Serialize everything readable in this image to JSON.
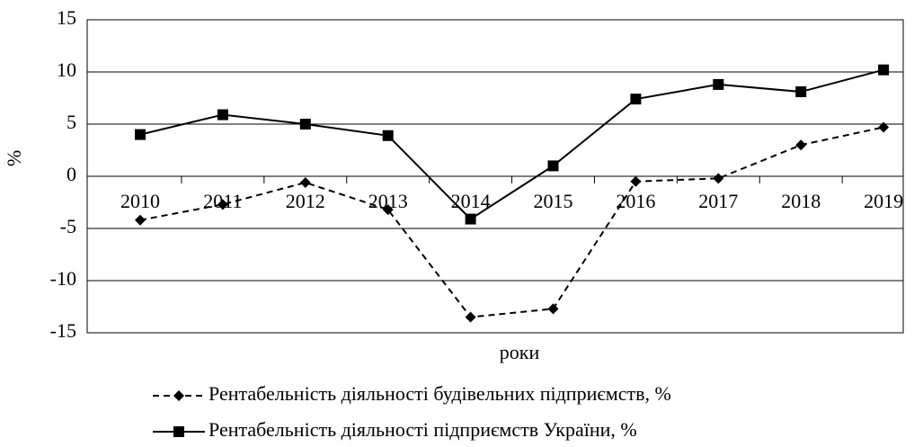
{
  "chart_data": {
    "type": "line",
    "categories": [
      "2010",
      "2011",
      "2012",
      "2013",
      "2014",
      "2015",
      "2016",
      "2017",
      "2018",
      "2019"
    ],
    "series": [
      {
        "name": "Рентабельність діяльності будівельних підприємств, %",
        "color": "#000000",
        "dash": true,
        "marker": "diamond",
        "values": [
          -4.2,
          -2.7,
          -0.6,
          -3.2,
          -13.5,
          -12.7,
          -0.5,
          -0.2,
          3.0,
          4.7
        ]
      },
      {
        "name": "Рентабельність діяльності підприємств України, %",
        "color": "#000000",
        "dash": false,
        "marker": "square",
        "values": [
          4.0,
          5.9,
          5.0,
          3.9,
          -4.1,
          1.0,
          7.4,
          8.8,
          8.1,
          10.2
        ]
      }
    ],
    "x_label": "роки",
    "y_label": "%",
    "ylim": [
      -15,
      15
    ],
    "yticks": [
      -15,
      -10,
      -5,
      0,
      5,
      10,
      15
    ],
    "grid": true
  }
}
